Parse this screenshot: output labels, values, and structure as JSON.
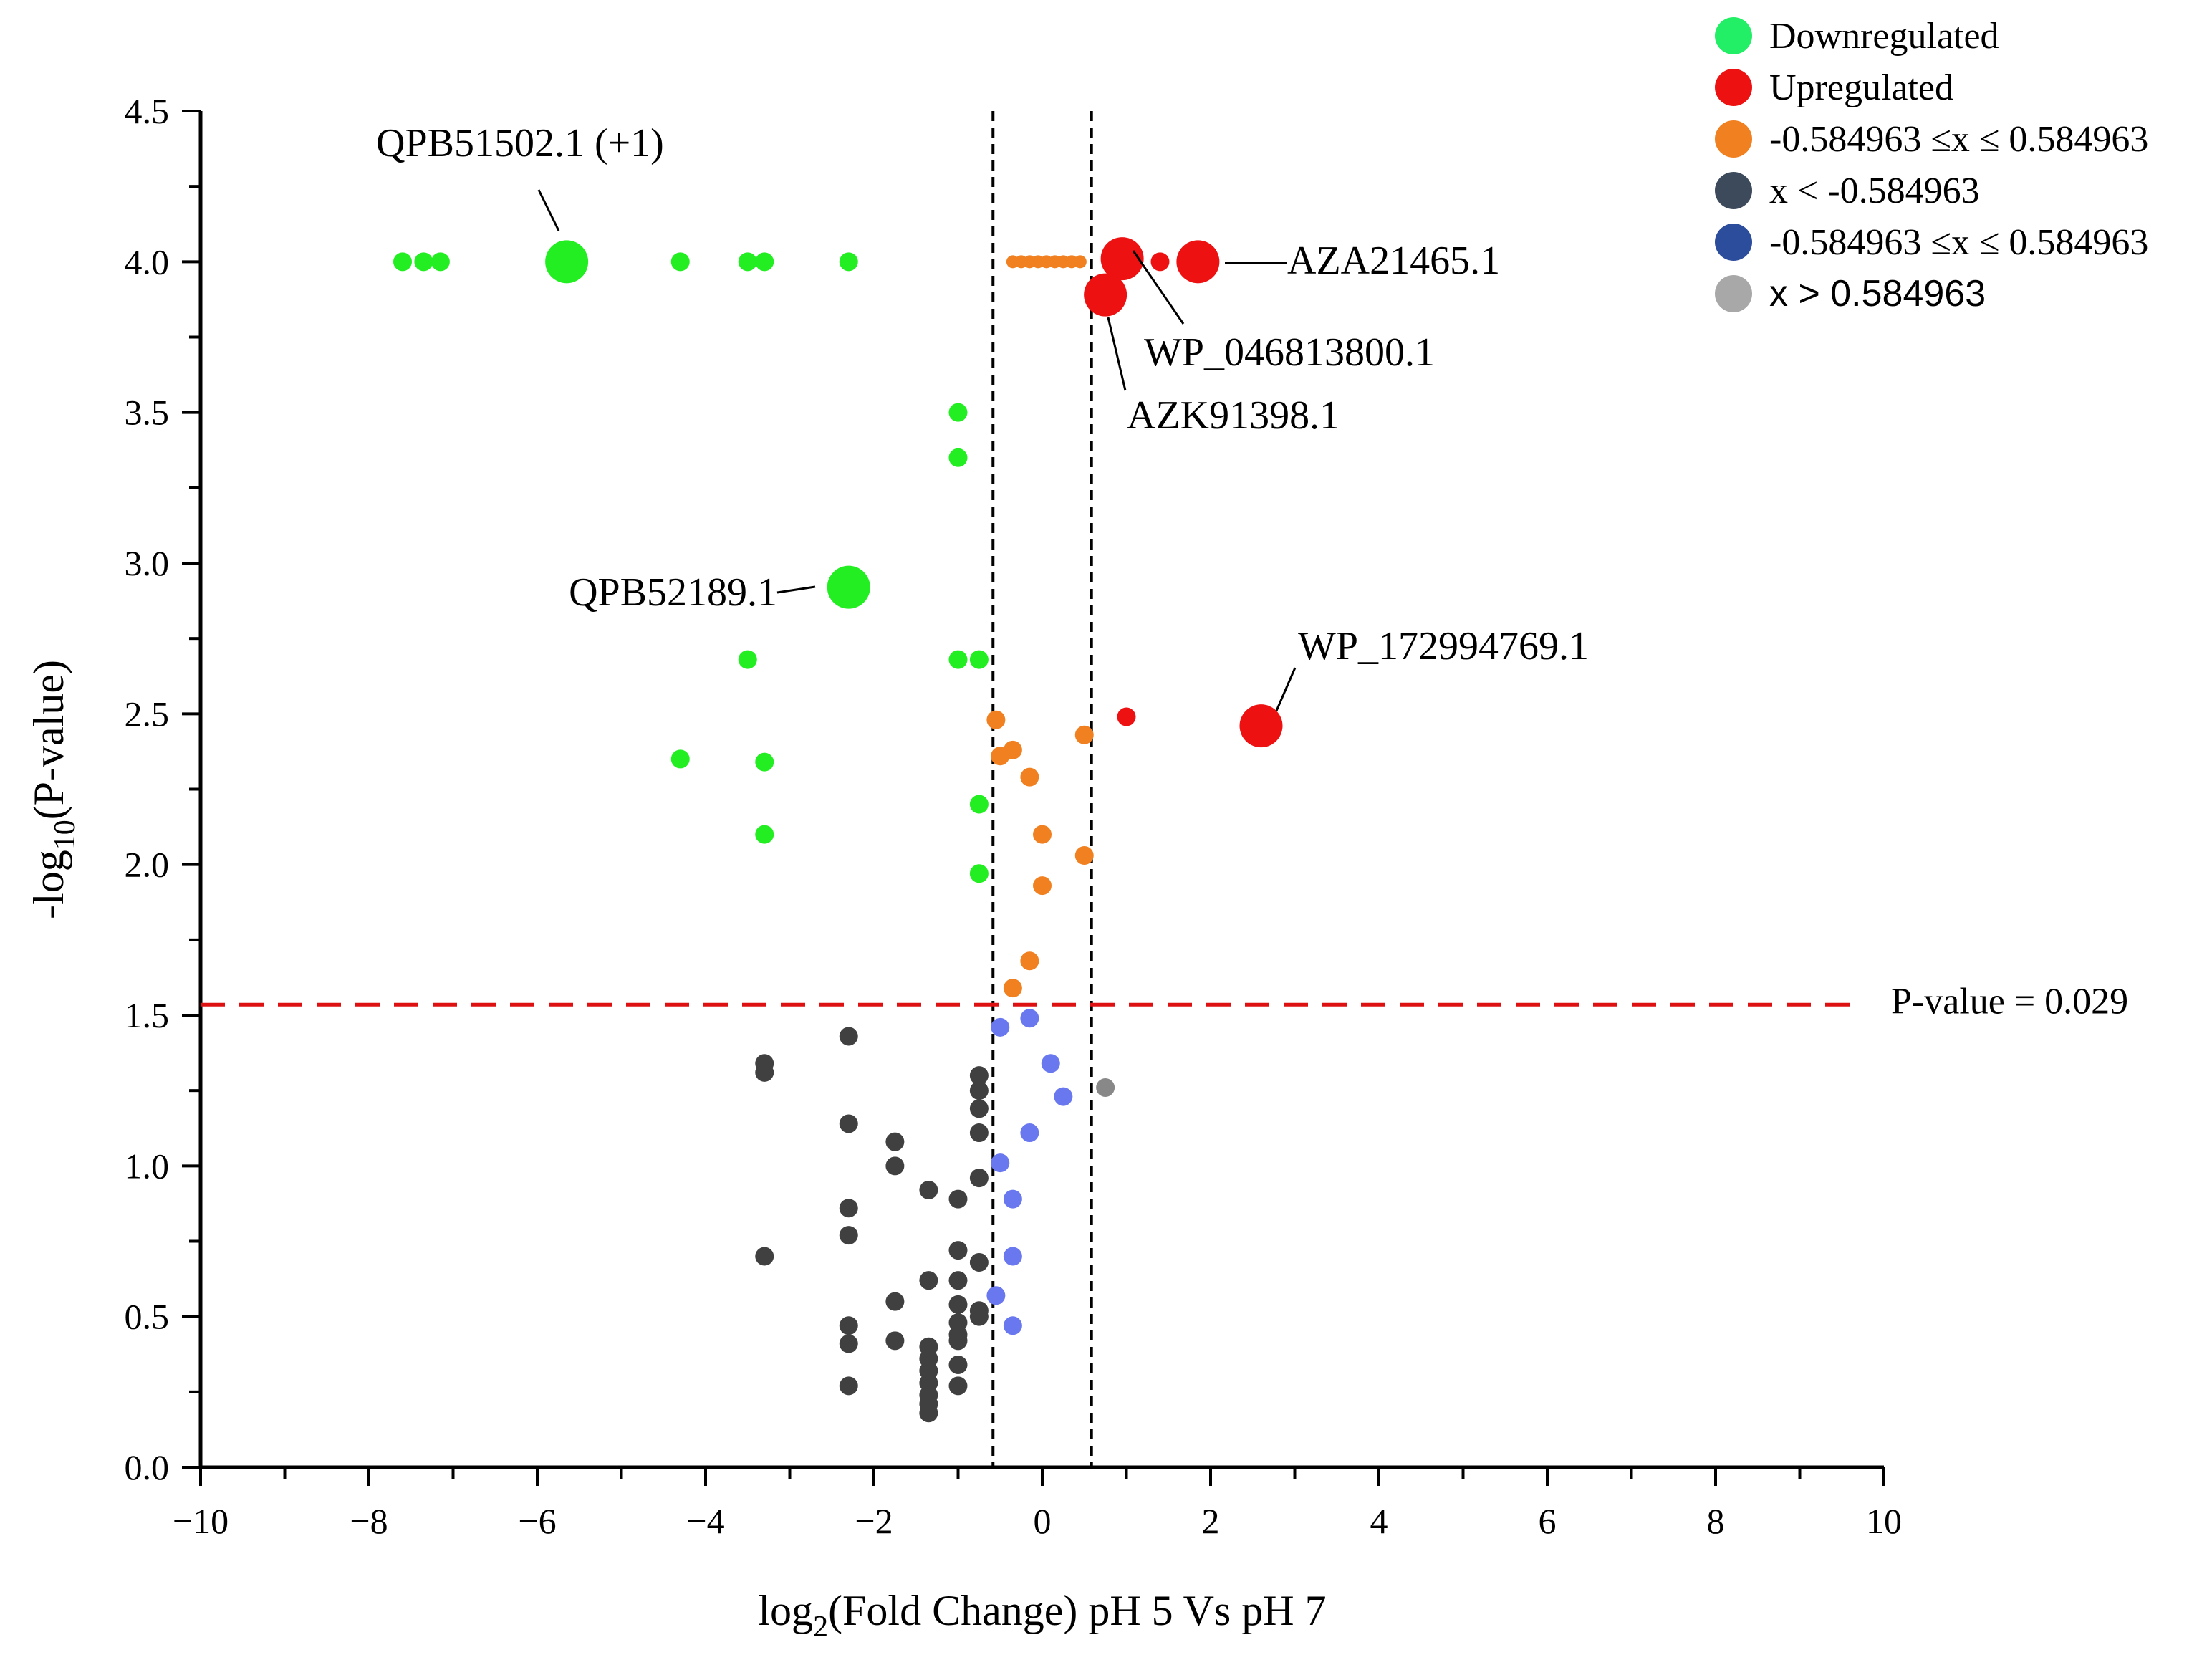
{
  "chart_data": {
    "type": "scatter",
    "title": "",
    "xlabel": {
      "prefix": "log",
      "sub": "2",
      "suffix": "(Fold Change) pH 5 Vs pH 7"
    },
    "ylabel": {
      "prefix": "-log",
      "sub": "10",
      "suffix": "(P-value)"
    },
    "xlim": [
      -10,
      10
    ],
    "ylim": [
      0,
      4.5
    ],
    "x_ticks": [
      -10,
      -8,
      -6,
      -4,
      -2,
      0,
      2,
      4,
      6,
      8,
      10
    ],
    "x_tick_labels": [
      "−10",
      "−8",
      "−6",
      "−4",
      "−2",
      "0",
      "2",
      "4",
      "6",
      "8",
      "10"
    ],
    "y_ticks": [
      0,
      0.5,
      1,
      1.5,
      2,
      2.5,
      3,
      3.5,
      4,
      4.5
    ],
    "y_tick_labels": [
      "0.0",
      "0.5",
      "1.0",
      "1.5",
      "2.0",
      "2.5",
      "3.0",
      "3.5",
      "4.0",
      "4.5"
    ],
    "grid": false,
    "legend_position": "top-right",
    "colors": {
      "downregulated": "#22ee22",
      "upregulated": "#ee1111",
      "orange": "#f08020",
      "dark": "#404040",
      "blue": "#6a78f0",
      "gray": "#888888",
      "threshold_line": "#dd1111"
    },
    "legend": [
      {
        "label": "Downregulated",
        "color": "#22ee66",
        "font": "serif"
      },
      {
        "label": "Upregulated",
        "color": "#ee1111",
        "font": "serif"
      },
      {
        "label": "-0.584963 ≤x ≤ 0.584963",
        "color": "#f08020",
        "font": "serif"
      },
      {
        "label": " x < -0.584963",
        "color": "#3c4a5c",
        "font": "serif"
      },
      {
        "label": "-0.584963 ≤x ≤ 0.584963",
        "color": "#2c4c9c",
        "font": "serif"
      },
      {
        "label": " x > 0.584963",
        "color": "#a8a8a8",
        "font": "sans"
      }
    ],
    "vertical_thresholds": [
      -0.584963,
      0.584963
    ],
    "horizontal_threshold": {
      "y": 1.535,
      "label": "P-value = 0.029"
    },
    "series": [
      {
        "name": "Downregulated",
        "color": "#22ee22",
        "points": [
          [
            -7.6,
            4.0,
            1
          ],
          [
            -7.35,
            4.0,
            1
          ],
          [
            -7.15,
            4.0,
            1
          ],
          [
            -5.65,
            4.0,
            3
          ],
          [
            -4.3,
            4.0,
            1
          ],
          [
            -3.5,
            4.0,
            1
          ],
          [
            -3.3,
            4.0,
            1
          ],
          [
            -2.3,
            4.0,
            1
          ],
          [
            -1.0,
            3.5,
            1
          ],
          [
            -1.0,
            3.35,
            1
          ],
          [
            -2.3,
            2.92,
            3
          ],
          [
            -3.5,
            2.68,
            1
          ],
          [
            -1.0,
            2.68,
            1
          ],
          [
            -0.75,
            2.68,
            1
          ],
          [
            -4.3,
            2.35,
            1
          ],
          [
            -3.3,
            2.34,
            1
          ],
          [
            -0.75,
            2.2,
            1
          ],
          [
            -3.3,
            2.1,
            1
          ],
          [
            -0.75,
            1.97,
            1
          ]
        ]
      },
      {
        "name": "Upregulated",
        "color": "#ee1111",
        "points": [
          [
            0.95,
            4.01,
            3
          ],
          [
            1.4,
            4.0,
            1
          ],
          [
            1.85,
            4.0,
            3
          ],
          [
            0.75,
            3.89,
            3
          ],
          [
            1.0,
            2.49,
            1
          ],
          [
            2.6,
            2.46,
            3
          ]
        ]
      },
      {
        "name": "-0.584963 ≤x ≤ 0.584963",
        "color": "#f08020",
        "points": [
          [
            -0.35,
            4.0,
            0
          ],
          [
            -0.25,
            4.0,
            0
          ],
          [
            -0.15,
            4.0,
            0
          ],
          [
            -0.05,
            4.0,
            0
          ],
          [
            0.05,
            4.0,
            0
          ],
          [
            0.15,
            4.0,
            0
          ],
          [
            0.25,
            4.0,
            0
          ],
          [
            0.35,
            4.0,
            0
          ],
          [
            0.45,
            4.0,
            0
          ],
          [
            -0.55,
            2.48,
            1
          ],
          [
            0.5,
            2.43,
            1
          ],
          [
            -0.35,
            2.38,
            1
          ],
          [
            -0.5,
            2.36,
            1
          ],
          [
            -0.15,
            2.29,
            1
          ],
          [
            0.0,
            2.1,
            1
          ],
          [
            0.5,
            2.03,
            1
          ],
          [
            0.0,
            1.93,
            1
          ],
          [
            -0.15,
            1.68,
            1
          ],
          [
            -0.35,
            1.59,
            1
          ]
        ]
      },
      {
        "name": "x < -0.584963",
        "color": "#404040",
        "points": [
          [
            -2.3,
            1.43,
            1
          ],
          [
            -3.3,
            1.34,
            1
          ],
          [
            -3.3,
            1.31,
            1
          ],
          [
            -0.75,
            1.3,
            1
          ],
          [
            -0.75,
            1.25,
            1
          ],
          [
            -0.75,
            1.19,
            1
          ],
          [
            -2.3,
            1.14,
            1
          ],
          [
            -0.75,
            1.11,
            1
          ],
          [
            -1.75,
            1.08,
            1
          ],
          [
            -1.75,
            1.0,
            1
          ],
          [
            -0.75,
            0.96,
            1
          ],
          [
            -1.35,
            0.92,
            1
          ],
          [
            -1.0,
            0.89,
            1
          ],
          [
            -2.3,
            0.86,
            1
          ],
          [
            -2.3,
            0.77,
            1
          ],
          [
            -1.0,
            0.72,
            1
          ],
          [
            -3.3,
            0.7,
            1
          ],
          [
            -0.75,
            0.68,
            1
          ],
          [
            -1.35,
            0.62,
            1
          ],
          [
            -1.0,
            0.62,
            1
          ],
          [
            -1.75,
            0.55,
            1
          ],
          [
            -1.0,
            0.54,
            1
          ],
          [
            -0.75,
            0.52,
            1
          ],
          [
            -1.0,
            0.48,
            1
          ],
          [
            -0.75,
            0.5,
            1
          ],
          [
            -2.3,
            0.47,
            1
          ],
          [
            -1.0,
            0.44,
            1
          ],
          [
            -1.75,
            0.42,
            1
          ],
          [
            -2.3,
            0.41,
            1
          ],
          [
            -1.35,
            0.4,
            1
          ],
          [
            -1.0,
            0.42,
            1
          ],
          [
            -1.35,
            0.36,
            1
          ],
          [
            -1.35,
            0.32,
            1
          ],
          [
            -1.0,
            0.34,
            1
          ],
          [
            -1.35,
            0.28,
            1
          ],
          [
            -2.3,
            0.27,
            1
          ],
          [
            -1.0,
            0.27,
            1
          ],
          [
            -1.35,
            0.24,
            1
          ],
          [
            -1.35,
            0.21,
            1
          ],
          [
            -1.35,
            0.18,
            1
          ]
        ]
      },
      {
        "name": "-0.584963 ≤x ≤ 0.584963 (blue)",
        "color": "#6a78f0",
        "points": [
          [
            -0.5,
            1.46,
            1
          ],
          [
            -0.15,
            1.49,
            1
          ],
          [
            0.1,
            1.34,
            1
          ],
          [
            0.25,
            1.23,
            1
          ],
          [
            -0.15,
            1.11,
            1
          ],
          [
            -0.5,
            1.01,
            1
          ],
          [
            -0.35,
            0.89,
            1
          ],
          [
            -0.35,
            0.7,
            1
          ],
          [
            -0.55,
            0.57,
            1
          ],
          [
            -0.35,
            0.47,
            1
          ]
        ]
      },
      {
        "name": "x > 0.584963",
        "color": "#888888",
        "points": [
          [
            0.75,
            1.26,
            1
          ]
        ]
      }
    ],
    "annotations": [
      {
        "text": "QPB51502.1 (+1)",
        "x": -5.65,
        "y": 4.0
      },
      {
        "text": "AZA21465.1",
        "x": 1.85,
        "y": 4.0
      },
      {
        "text": "WP_046813800.1",
        "x": 0.95,
        "y": 4.01
      },
      {
        "text": "AZK91398.1",
        "x": 0.75,
        "y": 3.89
      },
      {
        "text": "QPB52189.1",
        "x": -2.3,
        "y": 2.92
      },
      {
        "text": "WP_172994769.1",
        "x": 2.6,
        "y": 2.46
      }
    ]
  }
}
